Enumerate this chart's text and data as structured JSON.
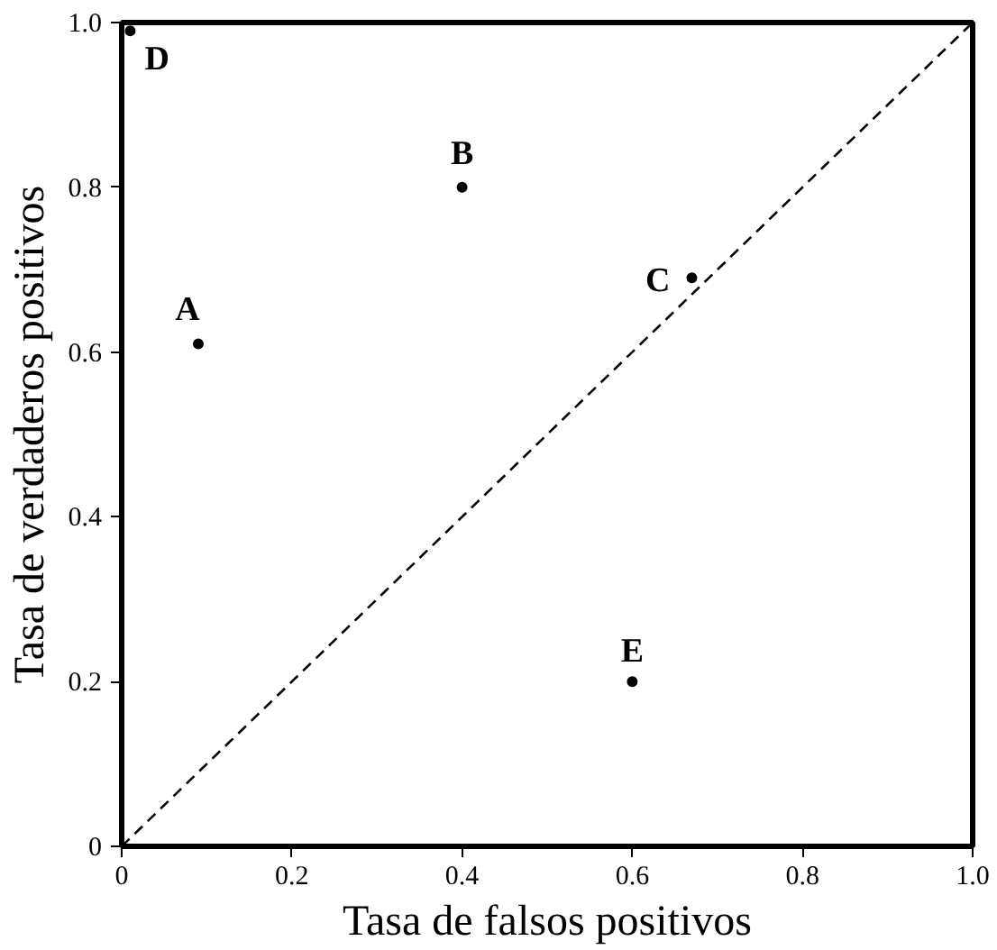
{
  "chart_data": {
    "type": "scatter",
    "xlabel": "Tasa de falsos positivos",
    "ylabel": "Tasa de verdaderos positivos",
    "xlim": [
      0,
      1
    ],
    "ylim": [
      0,
      1
    ],
    "xticks": [
      0,
      0.2,
      0.4,
      0.6,
      0.8,
      {
        "value": 1,
        "label": "1.0"
      }
    ],
    "yticks": [
      0,
      0.2,
      0.4,
      0.6,
      0.8,
      {
        "value": 1,
        "label": "1.0"
      }
    ],
    "grid": false,
    "marker": "circle",
    "series": [
      {
        "color": "#000000",
        "x": [
          0.09,
          0.4,
          0.67,
          0.01,
          0.6
        ],
        "values": [
          0.61,
          0.8,
          0.69,
          0.99,
          0.2
        ]
      },
      {
        "type": "line",
        "color": "#000000",
        "line_style": "dashed",
        "marker": "none",
        "x": [
          0,
          1
        ],
        "values": [
          0,
          1
        ]
      }
    ],
    "annotations": [
      {
        "text": "A",
        "x": 0.09,
        "y": 0.61
      },
      {
        "text": "B",
        "x": 0.4,
        "y": 0.8
      },
      {
        "text": "C",
        "x": 0.67,
        "y": 0.69
      },
      {
        "text": "D",
        "x": 0.01,
        "y": 0.99
      },
      {
        "text": "E",
        "x": 0.6,
        "y": 0.2
      }
    ]
  }
}
